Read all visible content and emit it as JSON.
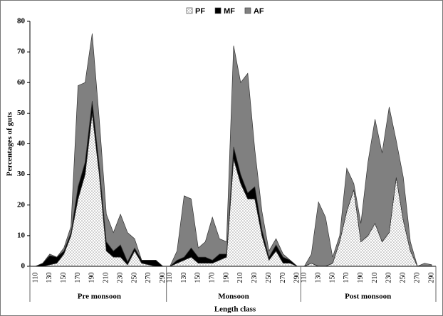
{
  "chart_data": {
    "type": "stacked_area",
    "y_label": "Percentages of guts",
    "x_label": "Length class",
    "groups": [
      "Pre monsoon",
      "Monsoon",
      "Post monsoon"
    ],
    "categories": [
      "110",
      null,
      "130",
      null,
      "150",
      null,
      "170",
      null,
      "190",
      null,
      "210",
      null,
      "230",
      null,
      "250",
      null,
      "270",
      null,
      "290",
      "110",
      null,
      "130",
      null,
      "150",
      null,
      "170",
      null,
      "190",
      null,
      "210",
      null,
      "230",
      null,
      "250",
      null,
      "270",
      null,
      "290",
      "110",
      null,
      "130",
      null,
      "150",
      null,
      "170",
      null,
      "190",
      null,
      "210",
      null,
      "230",
      null,
      "250",
      null,
      "270",
      null,
      "290"
    ],
    "series": [
      {
        "name": "PF",
        "color": "#999999",
        "pattern": "dots",
        "values": [
          0,
          0,
          0.5,
          1,
          4,
          10,
          22,
          30,
          50,
          30,
          5,
          3,
          3,
          0.5,
          5,
          1,
          0.5,
          0,
          0,
          0,
          1,
          2,
          3,
          1,
          1,
          1,
          2,
          3,
          35,
          27,
          22,
          22,
          10,
          2,
          5,
          1,
          1,
          0,
          0,
          1,
          0,
          0,
          1,
          8,
          18,
          25,
          8,
          10,
          14,
          8,
          11,
          29,
          15,
          5,
          0,
          0,
          0
        ]
      },
      {
        "name": "MF",
        "color": "#000000",
        "values": [
          0,
          1,
          3,
          2,
          1,
          1,
          4,
          4,
          4,
          3,
          3,
          2,
          4,
          1,
          1,
          1,
          1.5,
          2,
          0,
          0,
          1,
          1,
          3,
          2,
          2,
          1,
          2,
          1,
          4,
          3,
          2,
          4,
          2,
          1,
          2,
          2,
          1,
          0,
          0,
          0,
          0,
          0,
          0,
          0,
          0,
          0,
          0,
          0,
          0,
          0,
          0,
          0,
          0,
          0,
          0,
          0,
          0
        ]
      },
      {
        "name": "AF",
        "color": "#808080",
        "values": [
          0,
          0,
          0.5,
          0,
          1,
          2,
          33,
          26,
          22,
          15,
          9,
          6,
          10,
          9.5,
          3,
          0,
          0,
          0,
          0,
          0,
          3,
          20,
          16,
          3,
          5,
          14,
          5,
          4,
          33,
          30,
          39,
          12,
          6,
          2,
          2,
          1,
          0,
          0,
          0,
          3,
          21,
          16,
          2,
          2,
          14,
          2,
          6,
          24,
          34,
          29,
          41,
          12,
          14,
          3,
          0,
          1,
          0.5
        ]
      }
    ],
    "ylim": [
      0,
      80
    ],
    "yticks": [
      0,
      10,
      20,
      30,
      40,
      50,
      60,
      70,
      80
    ],
    "legend": "top"
  }
}
